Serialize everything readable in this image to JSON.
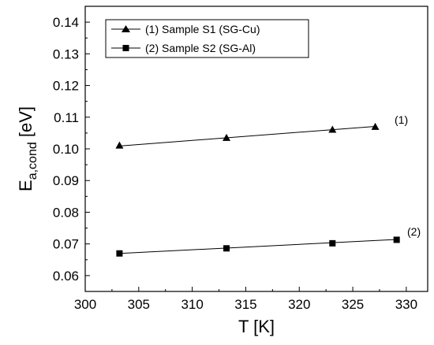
{
  "chart_data": {
    "type": "line",
    "title": "",
    "xlabel": "T [K]",
    "ylabel": {
      "main": "E",
      "subscript": "a,cond",
      "unit": " [eV]"
    },
    "xlim": [
      300,
      332
    ],
    "ylim": [
      0.055,
      0.145
    ],
    "xticks": [
      300,
      305,
      310,
      315,
      320,
      325,
      330
    ],
    "xtick_labels": [
      "300",
      "305",
      "310",
      "315",
      "320",
      "325",
      "330"
    ],
    "yticks": [
      0.06,
      0.07,
      0.08,
      0.09,
      0.1,
      0.11,
      0.12,
      0.13,
      0.14
    ],
    "ytick_labels": [
      "0.06",
      "0.07",
      "0.08",
      "0.09",
      "0.10",
      "0.11",
      "0.12",
      "0.13",
      "0.14"
    ],
    "grid": false,
    "legend_position": "top-left",
    "series": [
      {
        "name": "(1) Sample S1 (SG-Cu)",
        "marker": "triangle",
        "annotation": "(1)",
        "points": [
          {
            "x": 303.2,
            "y": 0.1011
          },
          {
            "x": 313.2,
            "y": 0.1035
          },
          {
            "x": 323.1,
            "y": 0.1061
          },
          {
            "x": 327.1,
            "y": 0.107
          }
        ],
        "fit": [
          {
            "x": 303.2,
            "y": 0.1009
          },
          {
            "x": 327.1,
            "y": 0.1071
          }
        ]
      },
      {
        "name": "(2) Sample S2 (SG-Al)",
        "marker": "square",
        "annotation": "(2)",
        "points": [
          {
            "x": 303.2,
            "y": 0.067
          },
          {
            "x": 313.2,
            "y": 0.0686
          },
          {
            "x": 323.1,
            "y": 0.0702
          },
          {
            "x": 329.1,
            "y": 0.0713
          }
        ],
        "fit": [
          {
            "x": 303.2,
            "y": 0.067
          },
          {
            "x": 329.1,
            "y": 0.0714
          }
        ]
      }
    ]
  }
}
